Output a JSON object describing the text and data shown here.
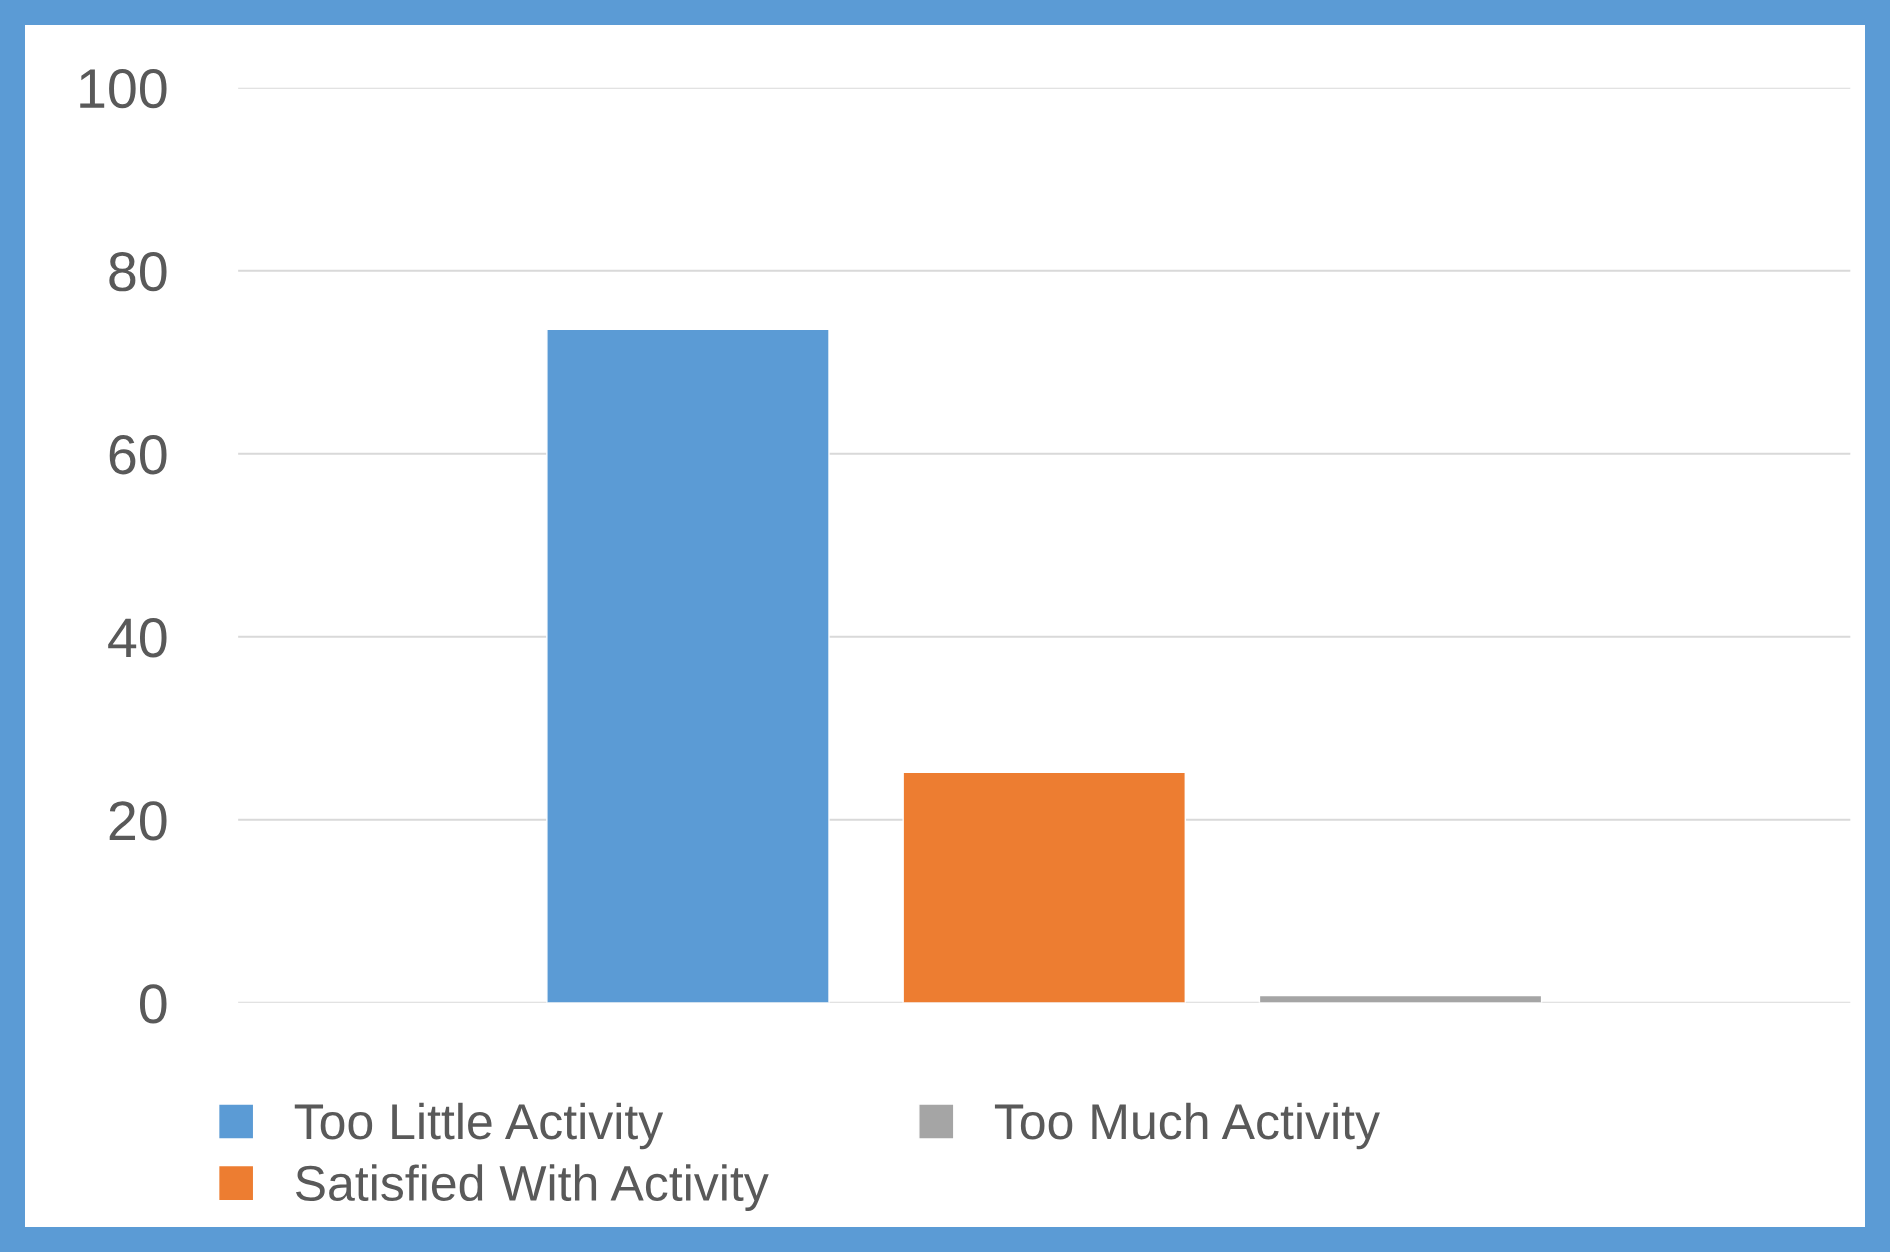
{
  "chart_data": {
    "type": "bar",
    "categories": [
      null
    ],
    "series": [
      {
        "name": "Too Little Activity",
        "color": "#5b9bd5",
        "values": [
          73.6
        ]
      },
      {
        "name": "Satisfied With Activity",
        "color": "#ed7d31",
        "values": [
          25.2
        ]
      },
      {
        "name": "Too Much Activity",
        "color": "#a5a5a5",
        "values": [
          0.8
        ]
      }
    ],
    "ylim": [
      0,
      100
    ],
    "yticks": [
      0,
      20,
      40,
      60,
      80,
      100
    ],
    "grid": "y",
    "legend": "bottom"
  }
}
